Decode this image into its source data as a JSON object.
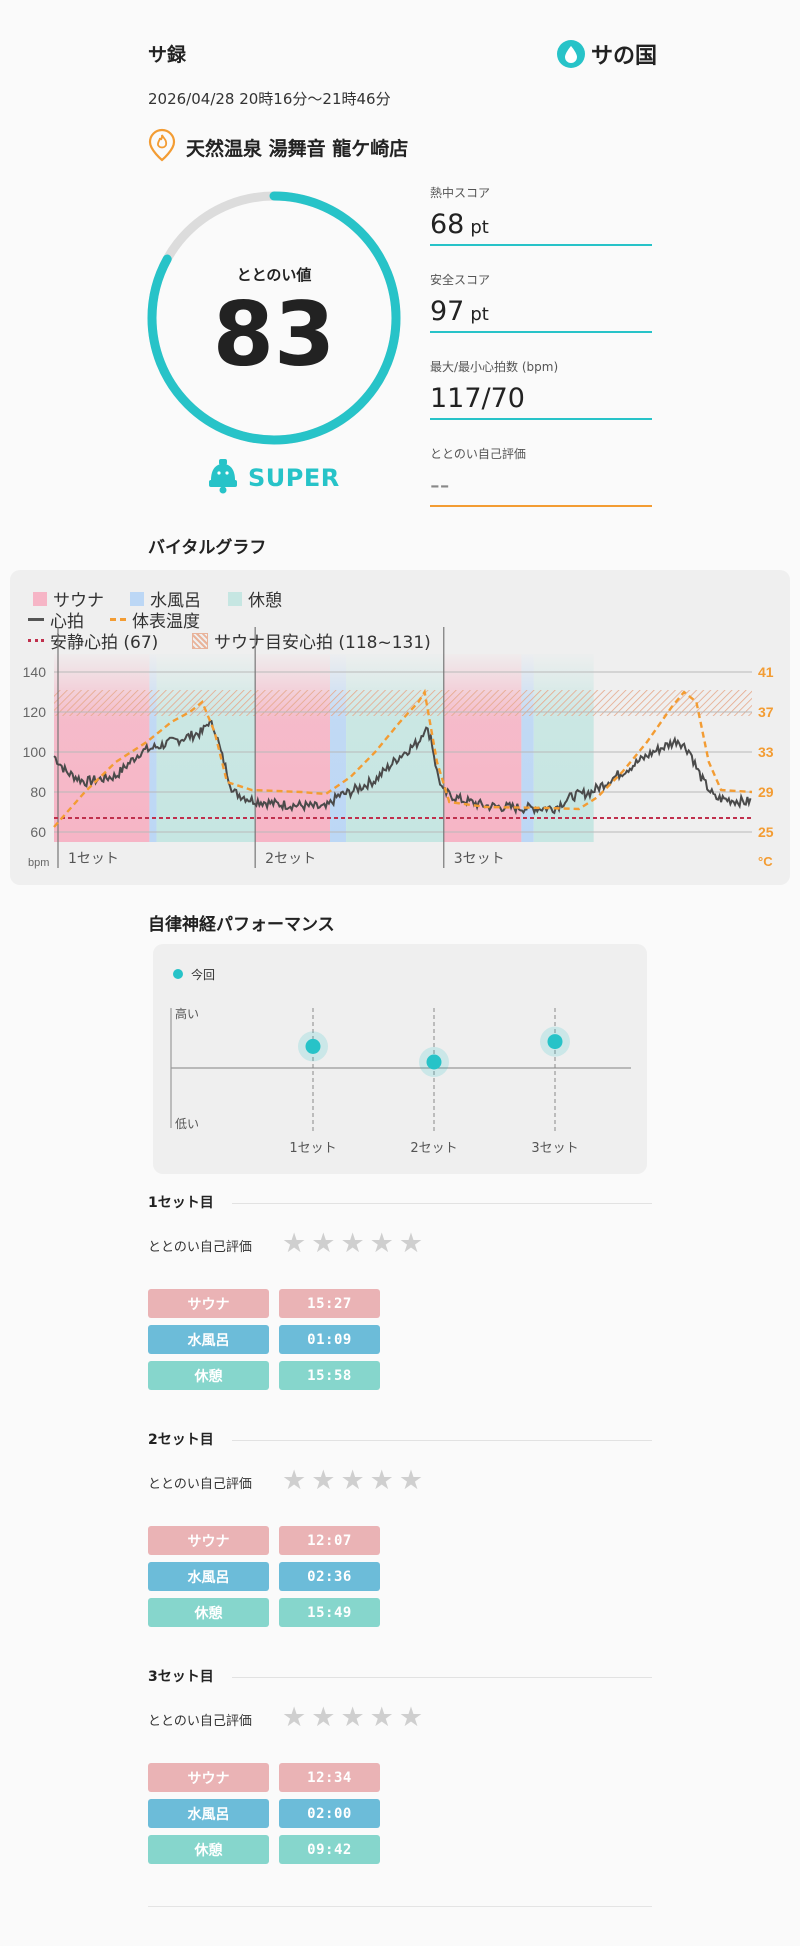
{
  "header": {
    "app_title": "サ録",
    "brand_name": "サの国",
    "datetime": "2026/04/28 20時16分〜21時46分",
    "facility": "天然温泉 湯舞音 龍ケ崎店"
  },
  "totonoi": {
    "label": "ととのい値",
    "value": "83",
    "progress": 0.83,
    "rank": "SUPER"
  },
  "scores": [
    {
      "label": "熱中スコア",
      "value": "68",
      "unit": "pt"
    },
    {
      "label": "安全スコア",
      "value": "97",
      "unit": "pt"
    },
    {
      "label": "最大/最小心拍数 (bpm)",
      "value": "117/70",
      "unit": ""
    },
    {
      "label": "ととのい自己評価",
      "value": "--",
      "unit": ""
    }
  ],
  "vital": {
    "title": "バイタルグラフ",
    "legend": {
      "sauna": "サウナ",
      "water": "水風呂",
      "rest": "休憩",
      "hr": "心拍",
      "temp": "体表温度",
      "resting": "安静心拍 (67)",
      "target": "サウナ目安心拍 (118~131)"
    },
    "y_left_unit": "bpm",
    "y_right_unit": "°C",
    "y_left_ticks": [
      "140",
      "120",
      "100",
      "80",
      "60"
    ],
    "y_right_ticks": [
      "41",
      "37",
      "33",
      "29",
      "25"
    ],
    "set_labels": [
      "1セット",
      "2セット",
      "3セット"
    ]
  },
  "chart_data": {
    "type": "line",
    "y_left": {
      "label": "bpm",
      "range": [
        55,
        145
      ]
    },
    "y_right": {
      "label": "°C",
      "range": [
        25,
        41
      ]
    },
    "resting_hr": 67,
    "target_hr_range": [
      118,
      131
    ],
    "phases": [
      {
        "set": 1,
        "sauna": "15:27",
        "water": "01:09",
        "rest": "15:58"
      },
      {
        "set": 2,
        "sauna": "12:07",
        "water": "02:36",
        "rest": "15:49"
      },
      {
        "set": 3,
        "sauna": "12:34",
        "water": "02:00",
        "rest": "09:42"
      }
    ],
    "series": [
      {
        "name": "心拍",
        "axis": "left",
        "points": [
          [
            0,
            98
          ],
          [
            2,
            90
          ],
          [
            5,
            85
          ],
          [
            10,
            88
          ],
          [
            14,
            100
          ],
          [
            19,
            105
          ],
          [
            24,
            110
          ],
          [
            25,
            115
          ],
          [
            26,
            112
          ],
          [
            27,
            100
          ],
          [
            28,
            90
          ],
          [
            29,
            80
          ],
          [
            32,
            76
          ],
          [
            36,
            74
          ],
          [
            41,
            73
          ],
          [
            44,
            72
          ],
          [
            46,
            78
          ],
          [
            48,
            80
          ],
          [
            52,
            86
          ],
          [
            56,
            98
          ],
          [
            59,
            105
          ],
          [
            60,
            112
          ],
          [
            61,
            108
          ],
          [
            62,
            90
          ],
          [
            63,
            80
          ],
          [
            66,
            76
          ],
          [
            70,
            73
          ],
          [
            76,
            72
          ],
          [
            81,
            72
          ],
          [
            84,
            78
          ],
          [
            87,
            80
          ],
          [
            90,
            86
          ],
          [
            93,
            92
          ],
          [
            97,
            100
          ],
          [
            101,
            106
          ],
          [
            103,
            100
          ],
          [
            104,
            92
          ],
          [
            105,
            86
          ],
          [
            107,
            77
          ],
          [
            112,
            75
          ],
          [
            113,
            76
          ]
        ]
      },
      {
        "name": "体表温度",
        "axis": "right",
        "points": [
          [
            0,
            25.5
          ],
          [
            5,
            29
          ],
          [
            10,
            32
          ],
          [
            15,
            34
          ],
          [
            19,
            36
          ],
          [
            22,
            37
          ],
          [
            24,
            38
          ],
          [
            26,
            35
          ],
          [
            28,
            30
          ],
          [
            32,
            29.2
          ],
          [
            40,
            29
          ],
          [
            44,
            28.8
          ],
          [
            48,
            30.5
          ],
          [
            52,
            33
          ],
          [
            56,
            36
          ],
          [
            59,
            38
          ],
          [
            60,
            39
          ],
          [
            62,
            32
          ],
          [
            64,
            28
          ],
          [
            70,
            27.5
          ],
          [
            80,
            27.4
          ],
          [
            85,
            27.3
          ],
          [
            88,
            28.5
          ],
          [
            92,
            31
          ],
          [
            96,
            34
          ],
          [
            100,
            37.5
          ],
          [
            102,
            39
          ],
          [
            104,
            38
          ],
          [
            106,
            32
          ],
          [
            108,
            29.2
          ],
          [
            113,
            29
          ]
        ]
      }
    ]
  },
  "autonomic": {
    "title": "自律神経パフォーマンス",
    "legend": "今回",
    "high": "高い",
    "low": "低い",
    "sets": [
      "1セット",
      "2セット",
      "3セット"
    ],
    "levels": [
      0.68,
      0.55,
      0.72
    ]
  },
  "sets": [
    {
      "title": "1セット目",
      "rating_label": "ととのい自己評価",
      "stars": 0,
      "sauna_label": "サウナ",
      "sauna_time": "15:27",
      "water_label": "水風呂",
      "water_time": "01:09",
      "rest_label": "休憩",
      "rest_time": "15:58"
    },
    {
      "title": "2セット目",
      "rating_label": "ととのい自己評価",
      "stars": 0,
      "sauna_label": "サウナ",
      "sauna_time": "12:07",
      "water_label": "水風呂",
      "water_time": "02:36",
      "rest_label": "休憩",
      "rest_time": "15:49"
    },
    {
      "title": "3セット目",
      "rating_label": "ととのい自己評価",
      "stars": 0,
      "sauna_label": "サウナ",
      "sauna_time": "12:34",
      "water_label": "水風呂",
      "water_time": "02:00",
      "rest_label": "休憩",
      "rest_time": "09:42"
    }
  ],
  "colors": {
    "accent": "#27c3c8",
    "orange": "#f39c33",
    "sauna": "#eab3b5",
    "water": "#6cbcd9",
    "rest": "#86d6cc"
  }
}
